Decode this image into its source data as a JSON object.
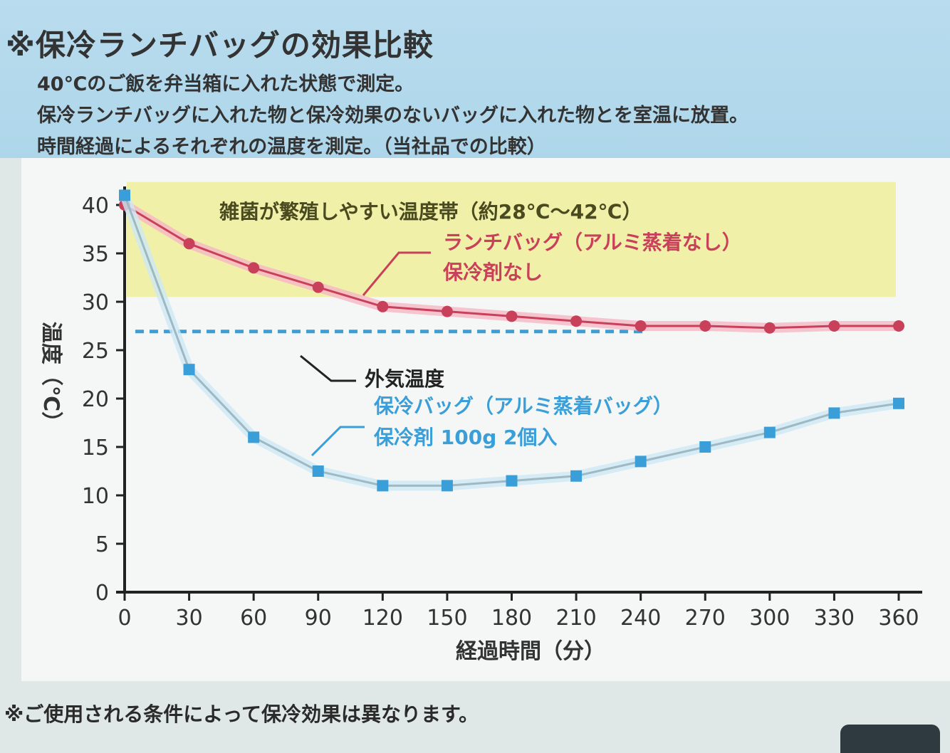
{
  "header": {
    "title": "※保冷ランチバッグの効果比較",
    "lines": [
      "40℃のご飯を弁当箱に入れた状態で測定。",
      "保冷ランチバッグに入れた物と保冷効果のないバッグに入れた物とを室温に放置。",
      "時間経過によるそれぞれの温度を測定。（当社品での比較）"
    ]
  },
  "footnote": "※ご使用される条件によって保冷効果は異なります。",
  "colors": {
    "lunchbag": "#c8405a",
    "coolbag": "#3a9fd8",
    "outside": "#3a9fd8",
    "band": "#f0f0a8"
  },
  "chart_data": {
    "type": "line",
    "xlabel": "経過時間（分）",
    "ylabel": "温度（℃）",
    "x": [
      0,
      30,
      60,
      90,
      120,
      150,
      180,
      210,
      240,
      270,
      300,
      330,
      360
    ],
    "y_ticks": [
      0,
      5,
      10,
      15,
      20,
      25,
      30,
      35,
      40
    ],
    "ylim": [
      0,
      42
    ],
    "xlim": [
      0,
      360
    ],
    "grid": false,
    "band": {
      "label": "雑菌が繁殖しやすい温度帯（約28℃〜42℃）",
      "range": [
        28,
        42
      ]
    },
    "reference_line": {
      "label": "外気温度",
      "value": 27
    },
    "series": [
      {
        "name_lines": [
          "ランチバッグ（アルミ蒸着なし）",
          "保冷剤なし"
        ],
        "values": [
          40,
          36,
          33.5,
          31.5,
          29.5,
          29,
          28.5,
          28,
          27.5,
          27.5,
          27.3,
          27.5,
          27.5
        ]
      },
      {
        "name_lines": [
          "保冷バッグ（アルミ蒸着バッグ）",
          "保冷剤 100g 2個入"
        ],
        "values": [
          41,
          23,
          16,
          12.5,
          11,
          11,
          11.5,
          12,
          13.5,
          15,
          16.5,
          18.5,
          19.5
        ]
      }
    ]
  }
}
